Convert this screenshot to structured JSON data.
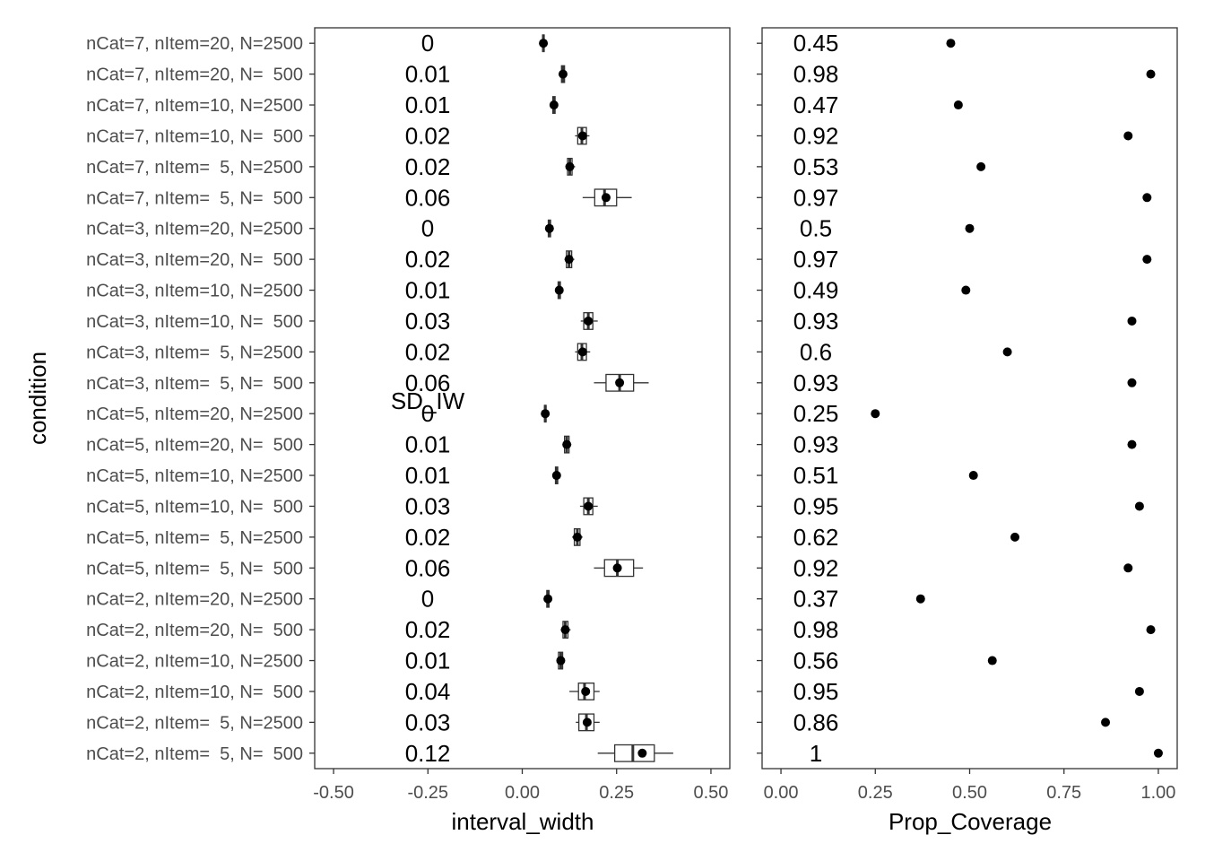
{
  "chart_data": [
    {
      "type": "boxplot",
      "xlabel": "interval_width",
      "ylabel": "condition",
      "xlim": [
        -0.55,
        0.55
      ],
      "x_ticks": [
        -0.5,
        -0.25,
        0.0,
        0.25,
        0.5
      ],
      "x_tick_labels": [
        "-0.50",
        "-0.25",
        "0.00",
        "0.25",
        "0.50"
      ],
      "annotation": "SD_IW",
      "grid": false,
      "categories": [
        "nCat=7, nItem=20, N=2500",
        "nCat=7, nItem=20, N=  500",
        "nCat=7, nItem=10, N=2500",
        "nCat=7, nItem=10, N=  500",
        "nCat=7, nItem=  5, N=2500",
        "nCat=7, nItem=  5, N=  500",
        "nCat=3, nItem=20, N=2500",
        "nCat=3, nItem=20, N=  500",
        "nCat=3, nItem=10, N=2500",
        "nCat=3, nItem=10, N=  500",
        "nCat=3, nItem=  5, N=2500",
        "nCat=3, nItem=  5, N=  500",
        "nCat=5, nItem=20, N=2500",
        "nCat=5, nItem=20, N=  500",
        "nCat=5, nItem=10, N=2500",
        "nCat=5, nItem=10, N=  500",
        "nCat=5, nItem=  5, N=2500",
        "nCat=5, nItem=  5, N=  500",
        "nCat=2, nItem=20, N=2500",
        "nCat=2, nItem=20, N=  500",
        "nCat=2, nItem=10, N=2500",
        "nCat=2, nItem=10, N=  500",
        "nCat=2, nItem=  5, N=2500",
        "nCat=2, nItem=  5, N=  500"
      ],
      "sd_labels": [
        "0",
        "0.01",
        "0.01",
        "0.02",
        "0.02",
        "0.06",
        "0",
        "0.02",
        "0.01",
        "0.03",
        "0.02",
        "0.06",
        "0",
        "0.01",
        "0.01",
        "0.03",
        "0.02",
        "0.06",
        "0",
        "0.02",
        "0.01",
        "0.04",
        "0.03",
        "0.12"
      ],
      "boxes": [
        {
          "wlo": 0.052,
          "q1": 0.054,
          "med": 0.056,
          "q3": 0.058,
          "whi": 0.06,
          "mean": 0.056
        },
        {
          "wlo": 0.1,
          "q1": 0.104,
          "med": 0.108,
          "q3": 0.112,
          "whi": 0.116,
          "mean": 0.108
        },
        {
          "wlo": 0.078,
          "q1": 0.081,
          "med": 0.084,
          "q3": 0.087,
          "whi": 0.09,
          "mean": 0.084
        },
        {
          "wlo": 0.14,
          "q1": 0.147,
          "med": 0.158,
          "q3": 0.17,
          "whi": 0.178,
          "mean": 0.16
        },
        {
          "wlo": 0.115,
          "q1": 0.12,
          "med": 0.126,
          "q3": 0.132,
          "whi": 0.14,
          "mean": 0.126
        },
        {
          "wlo": 0.16,
          "q1": 0.192,
          "med": 0.218,
          "q3": 0.25,
          "whi": 0.29,
          "mean": 0.222
        },
        {
          "wlo": 0.066,
          "q1": 0.069,
          "med": 0.072,
          "q3": 0.075,
          "whi": 0.078,
          "mean": 0.072
        },
        {
          "wlo": 0.112,
          "q1": 0.117,
          "med": 0.124,
          "q3": 0.131,
          "whi": 0.138,
          "mean": 0.124
        },
        {
          "wlo": 0.092,
          "q1": 0.095,
          "med": 0.098,
          "q3": 0.101,
          "whi": 0.104,
          "mean": 0.098
        },
        {
          "wlo": 0.155,
          "q1": 0.163,
          "med": 0.175,
          "q3": 0.187,
          "whi": 0.2,
          "mean": 0.175
        },
        {
          "wlo": 0.14,
          "q1": 0.147,
          "med": 0.158,
          "q3": 0.17,
          "whi": 0.18,
          "mean": 0.16
        },
        {
          "wlo": 0.19,
          "q1": 0.222,
          "med": 0.258,
          "q3": 0.295,
          "whi": 0.335,
          "mean": 0.258
        },
        {
          "wlo": 0.057,
          "q1": 0.059,
          "med": 0.061,
          "q3": 0.063,
          "whi": 0.065,
          "mean": 0.061
        },
        {
          "wlo": 0.107,
          "q1": 0.112,
          "med": 0.118,
          "q3": 0.124,
          "whi": 0.13,
          "mean": 0.118
        },
        {
          "wlo": 0.085,
          "q1": 0.088,
          "med": 0.091,
          "q3": 0.094,
          "whi": 0.097,
          "mean": 0.091
        },
        {
          "wlo": 0.153,
          "q1": 0.163,
          "med": 0.175,
          "q3": 0.187,
          "whi": 0.2,
          "mean": 0.175
        },
        {
          "wlo": 0.132,
          "q1": 0.138,
          "med": 0.146,
          "q3": 0.153,
          "whi": 0.16,
          "mean": 0.146
        },
        {
          "wlo": 0.19,
          "q1": 0.218,
          "med": 0.252,
          "q3": 0.295,
          "whi": 0.32,
          "mean": 0.252
        },
        {
          "wlo": 0.063,
          "q1": 0.065,
          "med": 0.068,
          "q3": 0.071,
          "whi": 0.073,
          "mean": 0.068
        },
        {
          "wlo": 0.102,
          "q1": 0.108,
          "med": 0.114,
          "q3": 0.121,
          "whi": 0.128,
          "mean": 0.114
        },
        {
          "wlo": 0.092,
          "q1": 0.096,
          "med": 0.102,
          "q3": 0.107,
          "whi": 0.112,
          "mean": 0.102
        },
        {
          "wlo": 0.125,
          "q1": 0.149,
          "med": 0.165,
          "q3": 0.19,
          "whi": 0.205,
          "mean": 0.168
        },
        {
          "wlo": 0.142,
          "q1": 0.15,
          "med": 0.17,
          "q3": 0.19,
          "whi": 0.205,
          "mean": 0.172
        },
        {
          "wlo": 0.2,
          "q1": 0.245,
          "med": 0.293,
          "q3": 0.35,
          "whi": 0.4,
          "mean": 0.318
        }
      ]
    },
    {
      "type": "scatter",
      "xlabel": "Prop_Coverage",
      "ylabel": "",
      "xlim": [
        -0.05,
        1.05
      ],
      "x_ticks": [
        0.0,
        0.25,
        0.5,
        0.75,
        1.0
      ],
      "x_tick_labels": [
        "0.00",
        "0.25",
        "0.50",
        "0.75",
        "1.00"
      ],
      "grid": false,
      "cov_labels": [
        "0.45",
        "0.98",
        "0.47",
        "0.92",
        "0.53",
        "0.97",
        "0.5",
        "0.97",
        "0.49",
        "0.93",
        "0.6",
        "0.93",
        "0.25",
        "0.93",
        "0.51",
        "0.95",
        "0.62",
        "0.92",
        "0.37",
        "0.98",
        "0.56",
        "0.95",
        "0.86",
        "1"
      ],
      "values": [
        0.45,
        0.98,
        0.47,
        0.92,
        0.53,
        0.97,
        0.5,
        0.97,
        0.49,
        0.93,
        0.6,
        0.93,
        0.25,
        0.93,
        0.51,
        0.95,
        0.62,
        0.92,
        0.37,
        0.98,
        0.56,
        0.95,
        0.86,
        1.0
      ]
    }
  ]
}
